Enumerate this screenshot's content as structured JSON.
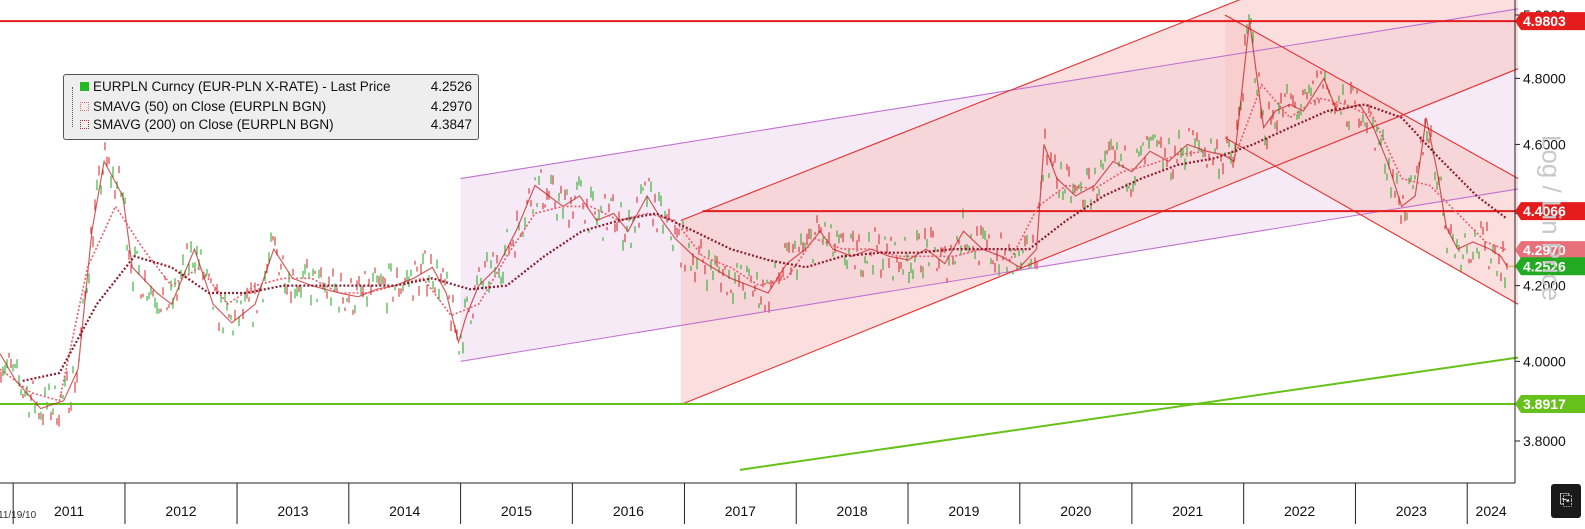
{
  "chart_data": {
    "type": "line",
    "title": "",
    "xlabel": "",
    "ylabel": "Log / Lin Price",
    "scale": "log",
    "grid": false,
    "legend_position": "top-left",
    "start_date_label": "11/19/10",
    "x_ticks": [
      "2011",
      "2012",
      "2013",
      "2014",
      "2015",
      "2016",
      "2017",
      "2018",
      "2019",
      "2020",
      "2021",
      "2022",
      "2023",
      "2024"
    ],
    "y_ticks": [
      "4.2000",
      "4.4000",
      "4.6000",
      "4.8000",
      "5.0000",
      "3.8000",
      "4.0000"
    ],
    "ylim": [
      3.72,
      5.0
    ],
    "legend": [
      {
        "label": "EURPLN Curncy (EUR-PLN X-RATE) - Last Price",
        "value": "4.2526",
        "color": "#22bb22"
      },
      {
        "label": "SMAVG (50)  on Close (EURPLN BGN)",
        "value": "4.2970",
        "color": "#e07070"
      },
      {
        "label": "SMAVG (200)  on Close (EURPLN BGN)",
        "value": "4.3847",
        "color": "#a03040"
      }
    ],
    "price_badges": [
      {
        "value": "4.9803",
        "color": "#e51c1c"
      },
      {
        "value": "4.4066",
        "color": "#e51c1c"
      },
      {
        "value": "4.2970",
        "color": "#e8707a"
      },
      {
        "value": "4.2526",
        "color": "#22aa22"
      },
      {
        "value": "3.8917",
        "color": "#66c21a"
      }
    ],
    "series": [
      {
        "name": "EURPLN Curncy (EUR-PLN X-RATE) - Last Price",
        "x": [
          "2010-11-19",
          "2011-01-10",
          "2011-04-01",
          "2011-06-15",
          "2011-08-01",
          "2011-09-15",
          "2011-10-25",
          "2011-12-25",
          "2012-01-25",
          "2012-04-15",
          "2012-06-01",
          "2012-08-15",
          "2012-10-15",
          "2012-12-15",
          "2013-03-01",
          "2013-05-01",
          "2013-07-01",
          "2013-09-01",
          "2013-12-01",
          "2014-02-01",
          "2014-04-01",
          "2014-06-01",
          "2014-08-01",
          "2014-10-01",
          "2014-11-15",
          "2014-12-25",
          "2015-01-20",
          "2015-03-01",
          "2015-05-01",
          "2015-07-01",
          "2015-09-01",
          "2015-12-01",
          "2016-01-25",
          "2016-03-20",
          "2016-05-15",
          "2016-07-01",
          "2016-09-01",
          "2016-10-20",
          "2016-12-01",
          "2017-02-01",
          "2017-04-01",
          "2017-06-01",
          "2017-08-01",
          "2017-10-01",
          "2017-12-01",
          "2018-02-01",
          "2018-03-20",
          "2018-05-01",
          "2018-07-01",
          "2018-09-01",
          "2018-11-01",
          "2019-01-01",
          "2019-03-01",
          "2019-05-01",
          "2019-07-01",
          "2019-09-01",
          "2019-11-01",
          "2020-01-01",
          "2020-02-25",
          "2020-03-20",
          "2020-05-01",
          "2020-07-01",
          "2020-09-01",
          "2020-11-01",
          "2021-01-01",
          "2021-03-01",
          "2021-05-01",
          "2021-07-01",
          "2021-09-01",
          "2021-10-25",
          "2021-12-01",
          "2022-01-20",
          "2022-03-07",
          "2022-04-15",
          "2022-06-01",
          "2022-07-15",
          "2022-09-20",
          "2022-11-01",
          "2023-01-15",
          "2023-03-01",
          "2023-04-15",
          "2023-06-01",
          "2023-07-15",
          "2023-08-20",
          "2023-09-25",
          "2023-10-25",
          "2023-12-01",
          "2024-01-20",
          "2024-03-15",
          "2024-04-20",
          "2024-05-10"
        ],
        "values": [
          4.02,
          3.95,
          3.88,
          3.9,
          3.98,
          4.35,
          4.55,
          4.45,
          4.25,
          4.18,
          4.15,
          4.3,
          4.15,
          4.1,
          4.15,
          4.3,
          4.22,
          4.2,
          4.18,
          4.17,
          4.19,
          4.2,
          4.22,
          4.25,
          4.18,
          4.05,
          4.12,
          4.2,
          4.25,
          4.35,
          4.48,
          4.42,
          4.45,
          4.38,
          4.4,
          4.35,
          4.45,
          4.38,
          4.33,
          4.28,
          4.25,
          4.22,
          4.2,
          4.18,
          4.26,
          4.3,
          4.35,
          4.3,
          4.28,
          4.3,
          4.28,
          4.27,
          4.3,
          4.26,
          4.35,
          4.3,
          4.28,
          4.25,
          4.3,
          4.6,
          4.5,
          4.45,
          4.48,
          4.55,
          4.52,
          4.58,
          4.55,
          4.6,
          4.58,
          4.57,
          4.55,
          4.98,
          4.65,
          4.7,
          4.72,
          4.7,
          4.8,
          4.7,
          4.72,
          4.65,
          4.55,
          4.42,
          4.45,
          4.68,
          4.52,
          4.36,
          4.3,
          4.32,
          4.3,
          4.28,
          4.2526
        ]
      },
      {
        "name": "SMAVG (50)  on Close (EURPLN BGN)",
        "x": [
          "2010-11-19",
          "2011-03-01",
          "2011-06-01",
          "2011-09-01",
          "2011-12-01",
          "2012-03-01",
          "2012-06-01",
          "2012-09-01",
          "2012-12-01",
          "2013-03-01",
          "2013-06-01",
          "2013-09-01",
          "2013-12-01",
          "2014-03-01",
          "2014-06-01",
          "2014-09-01",
          "2014-12-01",
          "2015-03-01",
          "2015-06-01",
          "2015-09-01",
          "2015-12-01",
          "2016-03-01",
          "2016-06-01",
          "2016-09-01",
          "2016-12-01",
          "2017-03-01",
          "2017-06-01",
          "2017-09-01",
          "2017-12-01",
          "2018-03-01",
          "2018-06-01",
          "2018-09-01",
          "2018-12-01",
          "2019-03-01",
          "2019-06-01",
          "2019-09-01",
          "2019-12-01",
          "2020-03-01",
          "2020-06-01",
          "2020-09-01",
          "2020-12-01",
          "2021-03-01",
          "2021-06-01",
          "2021-09-01",
          "2021-12-01",
          "2022-03-01",
          "2022-06-01",
          "2022-09-01",
          "2022-12-01",
          "2023-03-01",
          "2023-06-01",
          "2023-09-01",
          "2023-12-01",
          "2024-03-01",
          "2024-05-10"
        ],
        "values": [
          3.98,
          3.92,
          3.9,
          4.25,
          4.42,
          4.3,
          4.2,
          4.25,
          4.15,
          4.2,
          4.22,
          4.22,
          4.18,
          4.18,
          4.2,
          4.22,
          4.12,
          4.15,
          4.28,
          4.4,
          4.42,
          4.42,
          4.38,
          4.4,
          4.38,
          4.28,
          4.25,
          4.2,
          4.22,
          4.33,
          4.3,
          4.3,
          4.28,
          4.28,
          4.28,
          4.3,
          4.27,
          4.42,
          4.48,
          4.47,
          4.52,
          4.54,
          4.57,
          4.58,
          4.56,
          4.78,
          4.68,
          4.74,
          4.72,
          4.68,
          4.5,
          4.48,
          4.4,
          4.32,
          4.297
        ]
      },
      {
        "name": "SMAVG (200)  on Close (EURPLN BGN)",
        "x": [
          "2011-02-01",
          "2011-06-01",
          "2011-10-01",
          "2012-02-01",
          "2012-06-01",
          "2012-10-01",
          "2013-02-01",
          "2013-06-01",
          "2013-10-01",
          "2014-02-01",
          "2014-06-01",
          "2014-10-01",
          "2015-02-01",
          "2015-06-01",
          "2015-10-01",
          "2016-02-01",
          "2016-06-01",
          "2016-10-01",
          "2017-02-01",
          "2017-06-01",
          "2017-10-01",
          "2018-02-01",
          "2018-06-01",
          "2018-10-01",
          "2019-02-01",
          "2019-06-01",
          "2019-10-01",
          "2020-02-01",
          "2020-06-01",
          "2020-10-01",
          "2021-02-01",
          "2021-06-01",
          "2021-10-01",
          "2022-02-01",
          "2022-06-01",
          "2022-10-01",
          "2023-02-01",
          "2023-06-01",
          "2023-10-01",
          "2024-02-01",
          "2024-05-10"
        ],
        "values": [
          3.95,
          3.97,
          4.15,
          4.28,
          4.25,
          4.18,
          4.18,
          4.2,
          4.2,
          4.2,
          4.2,
          4.22,
          4.19,
          4.2,
          4.28,
          4.35,
          4.38,
          4.4,
          4.35,
          4.3,
          4.27,
          4.25,
          4.28,
          4.29,
          4.29,
          4.3,
          4.3,
          4.3,
          4.38,
          4.45,
          4.5,
          4.54,
          4.56,
          4.6,
          4.65,
          4.7,
          4.72,
          4.68,
          4.56,
          4.45,
          4.3847
        ]
      }
    ],
    "overlays": {
      "horizontal_lines": [
        {
          "value": 4.9803,
          "color": "#e51c1c"
        },
        {
          "value": 4.4066,
          "color": "#e51c1c",
          "from": "2017-03-01"
        },
        {
          "value": 3.8917,
          "color": "#66c21a"
        }
      ],
      "trend_lines": [
        {
          "from": [
            "2017-07-01",
            3.73
          ],
          "to": [
            "2024-06-15",
            4.01
          ],
          "color": "#66c21a"
        }
      ],
      "channels": [
        {
          "color": "#c070d0",
          "fill": "#f4e6f4",
          "lower": [
            [
              "2015-01-01",
              4.0
            ],
            [
              "2024-06-15",
              4.47
            ]
          ],
          "upper": [
            [
              "2015-01-01",
              4.5
            ],
            [
              "2024-06-15",
              5.02
            ]
          ]
        },
        {
          "color": "#e53030",
          "fill": "#f8c8c8",
          "lower": [
            [
              "2016-12-20",
              3.89
            ],
            [
              "2024-06-15",
              4.83
            ]
          ],
          "upper": [
            [
              "2016-12-20",
              4.38
            ],
            [
              "2024-06-15",
              5.42
            ]
          ]
        },
        {
          "color": "#e53030",
          "fill": "#f8c8c8",
          "upper": [
            [
              "2021-11-01",
              5.0
            ],
            [
              "2024-06-15",
              4.5
            ]
          ],
          "lower": [
            [
              "2021-11-01",
              4.62
            ],
            [
              "2024-06-15",
              4.15
            ]
          ]
        }
      ]
    }
  },
  "ui": {
    "corner_icon": "export-icon"
  }
}
